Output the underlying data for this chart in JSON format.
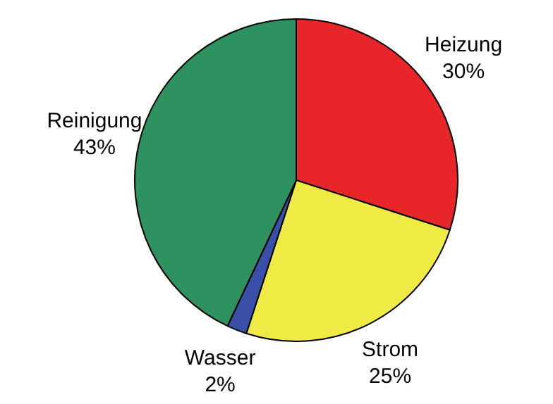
{
  "chart_data": {
    "type": "pie",
    "categories": [
      "Heizung",
      "Strom",
      "Wasser",
      "Reinigung"
    ],
    "values": [
      30,
      25,
      2,
      43
    ],
    "value_labels": [
      "30%",
      "25%",
      "2%",
      "43%"
    ],
    "colors": [
      "#e8262a",
      "#f0ea45",
      "#3a4fa8",
      "#2e9160"
    ],
    "legend": false
  }
}
